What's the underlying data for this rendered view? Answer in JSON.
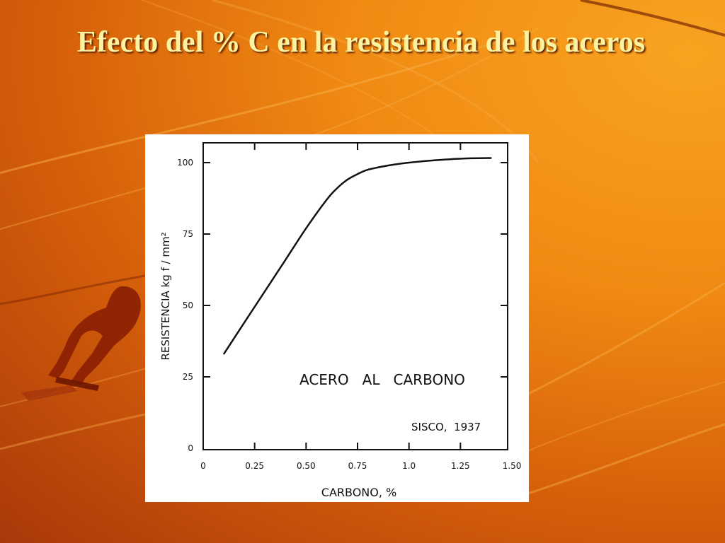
{
  "slide": {
    "title": "Efecto del % C en la resistencia de los aceros"
  },
  "colors": {
    "title_text": "#fbf3a0",
    "background_light": "#f9a321",
    "background_dark": "#a8380a",
    "curve": "#111111"
  },
  "icons": [
    "runner-silhouette"
  ],
  "chart_data": {
    "type": "line",
    "xlabel": "CARBONO, %",
    "ylabel": "RESISTENCIA   kg f / mm²",
    "xlim": [
      0,
      1.5
    ],
    "ylim": [
      0,
      100
    ],
    "x_ticks": [
      "0",
      "0.25",
      "0.50",
      "0.75",
      "1.0",
      "1.25",
      "1.50"
    ],
    "y_ticks": [
      "0",
      "25",
      "50",
      "75",
      "100"
    ],
    "grid": false,
    "annotations": [
      "ACERO   AL   CARBONO",
      "SISCO,  1937"
    ],
    "series": [
      {
        "x": [
          0.1,
          0.2,
          0.3,
          0.4,
          0.5,
          0.6,
          0.65,
          0.7,
          0.75,
          0.8,
          0.9,
          1.0,
          1.1,
          1.2,
          1.3,
          1.4
        ],
        "y": [
          33,
          44,
          55,
          66,
          77,
          87,
          91,
          94,
          96,
          97.5,
          99,
          100,
          100.7,
          101.2,
          101.5,
          101.6
        ]
      }
    ]
  }
}
